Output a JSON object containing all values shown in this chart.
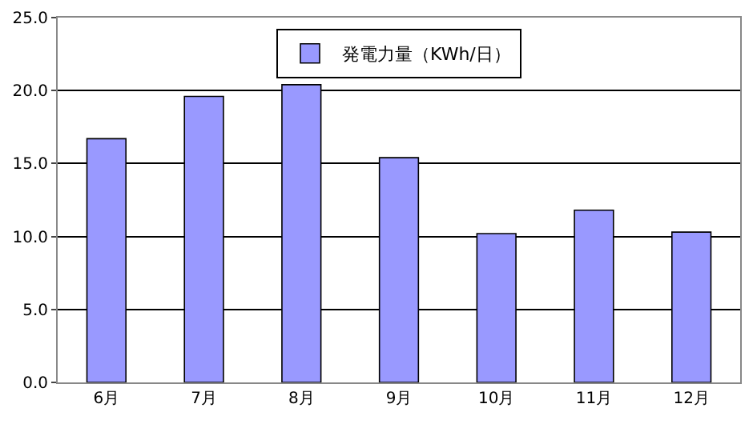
{
  "chart_data": {
    "type": "bar",
    "categories": [
      "6月",
      "7月",
      "8月",
      "9月",
      "10月",
      "11月",
      "12月"
    ],
    "series": [
      {
        "name": "発電力量（KWh/日）",
        "color": "#9999ff",
        "values": [
          16.7,
          19.6,
          20.4,
          15.4,
          10.2,
          11.8,
          10.3
        ]
      }
    ],
    "ylim": [
      0,
      25
    ],
    "yticks": [
      {
        "value": 0,
        "label": "0.0"
      },
      {
        "value": 5,
        "label": "5.0"
      },
      {
        "value": 10,
        "label": "10.0"
      },
      {
        "value": 15,
        "label": "15.0"
      },
      {
        "value": 20,
        "label": "20.0"
      },
      {
        "value": 25,
        "label": "25.0"
      }
    ],
    "grid": "y",
    "legend": "top"
  }
}
